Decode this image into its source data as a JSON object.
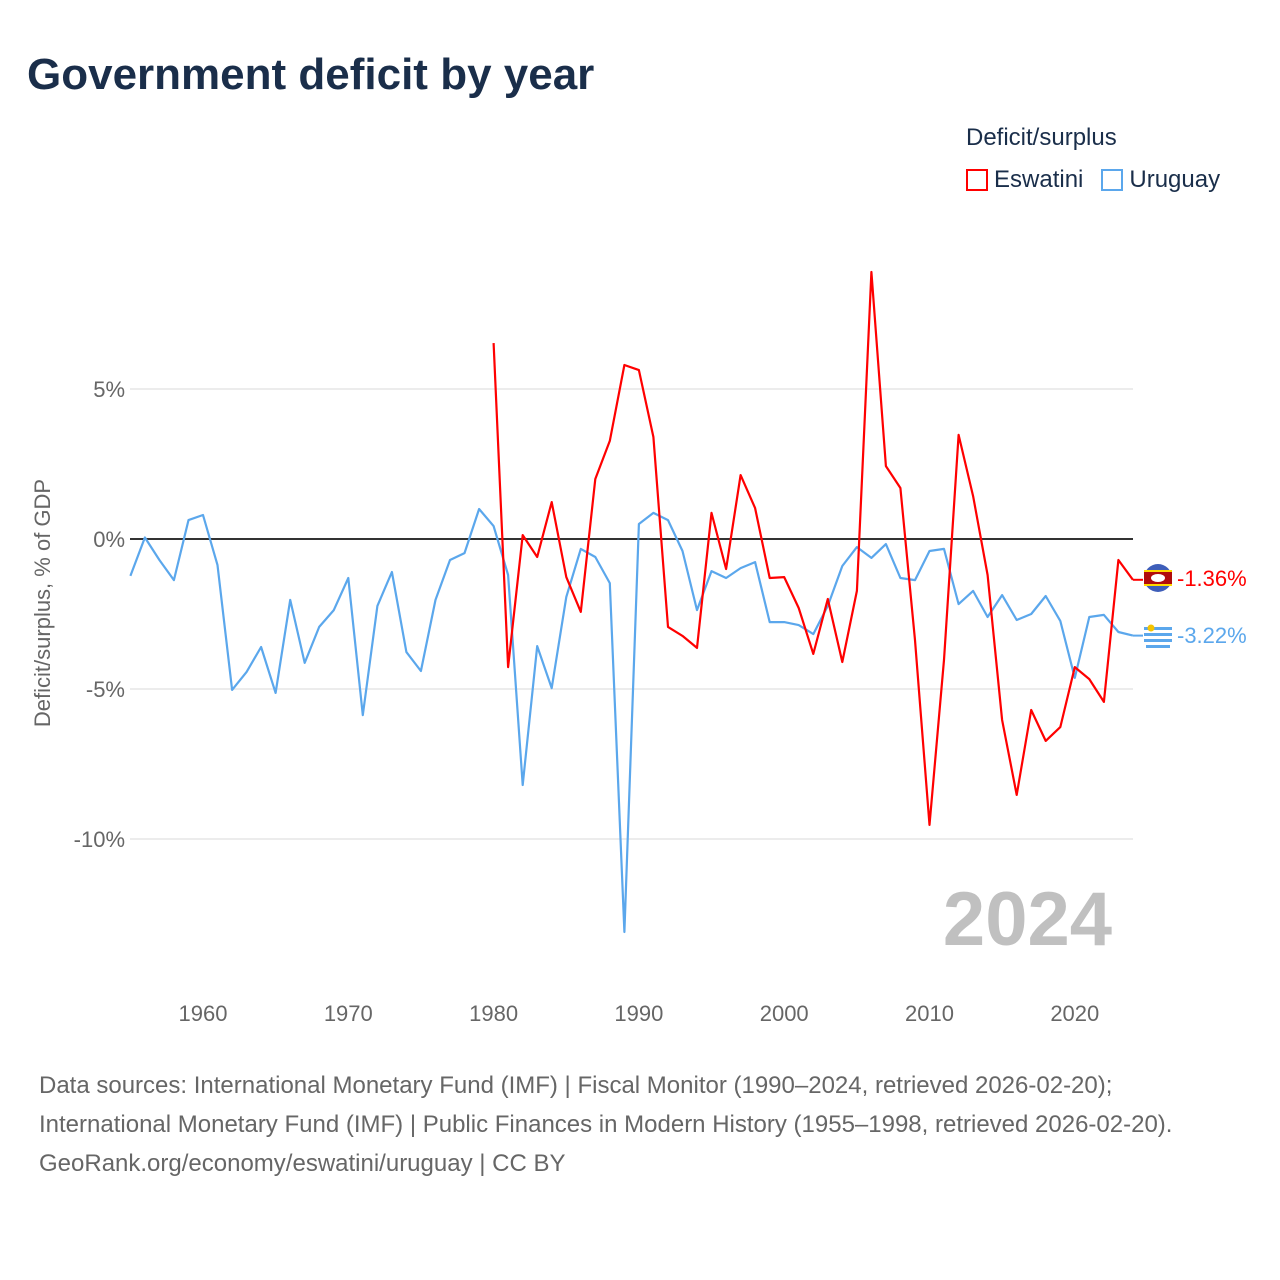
{
  "title": "Government deficit by year",
  "legend": {
    "title": "Deficit/surplus",
    "items": [
      {
        "name": "Eswatini",
        "color": "#ff0000"
      },
      {
        "name": "Uruguay",
        "color": "#5ba7ec"
      }
    ]
  },
  "year_watermark": "2024",
  "end_labels": {
    "eswatini": "-1.36%",
    "uruguay": "-3.22%"
  },
  "footer": {
    "sources": "Data sources: International Monetary Fund (IMF) | Fiscal Monitor (1990–2024, retrieved 2026-02-20); International Monetary Fund (IMF) | Public Finances in Modern History (1955–1998, retrieved 2026-02-20).",
    "credit": "GeoRank.org/economy/eswatini/uruguay | CC BY"
  },
  "chart_data": {
    "type": "line",
    "ylabel": "Deficit/surplus, % of GDP",
    "xlabel": "",
    "xlim": [
      1955,
      2024
    ],
    "ylim": [
      -13.5,
      9
    ],
    "x_ticks": [
      1960,
      1970,
      1980,
      1990,
      2000,
      2010,
      2020
    ],
    "y_ticks": [
      {
        "v": 5,
        "label": "5%"
      },
      {
        "v": 0,
        "label": "0%"
      },
      {
        "v": -5,
        "label": "-5%"
      },
      {
        "v": -10,
        "label": "-10%"
      }
    ],
    "series": [
      {
        "name": "Uruguay",
        "color": "#5ba7ec",
        "start": 1955,
        "values": [
          -1.23,
          0.05,
          -0.7,
          -1.37,
          0.63,
          0.8,
          -0.87,
          -5.03,
          -4.43,
          -3.6,
          -5.13,
          -2.03,
          -4.13,
          -2.93,
          -2.37,
          -1.3,
          -5.87,
          -2.23,
          -1.1,
          -3.77,
          -4.4,
          -2.03,
          -0.7,
          -0.47,
          1.0,
          0.43,
          -1.2,
          -8.2,
          -3.57,
          -4.97,
          -1.93,
          -0.33,
          -0.6,
          -1.47,
          -13.1,
          0.5,
          0.87,
          0.63,
          -0.4,
          -2.37,
          -1.07,
          -1.3,
          -0.97,
          -0.77,
          -2.77,
          -2.77,
          -2.87,
          -3.17,
          -2.23,
          -0.9,
          -0.27,
          -0.63,
          -0.17,
          -1.3,
          -1.37,
          -0.4,
          -0.33,
          -2.17,
          -1.73,
          -2.6,
          -1.87,
          -2.7,
          -2.5,
          -1.9,
          -2.73,
          -4.63,
          -2.6,
          -2.53,
          -3.1,
          -3.22
        ]
      },
      {
        "name": "Eswatini",
        "color": "#ff0000",
        "start": 1980,
        "values": [
          6.53,
          -4.27,
          0.13,
          -0.6,
          1.23,
          -1.27,
          -2.43,
          2.0,
          3.27,
          5.8,
          5.63,
          3.4,
          -2.93,
          -3.23,
          -3.63,
          0.87,
          -1.0,
          2.13,
          1.03,
          -1.3,
          -1.27,
          -2.3,
          -3.83,
          -2.0,
          -4.1,
          -1.73,
          8.9,
          2.43,
          1.7,
          -3.37,
          -9.53,
          -4.03,
          3.47,
          1.43,
          -1.2,
          -6.03,
          -8.53,
          -5.7,
          -6.73,
          -6.27,
          -4.27,
          -4.67,
          -5.43,
          -0.7,
          -1.36
        ]
      }
    ]
  }
}
